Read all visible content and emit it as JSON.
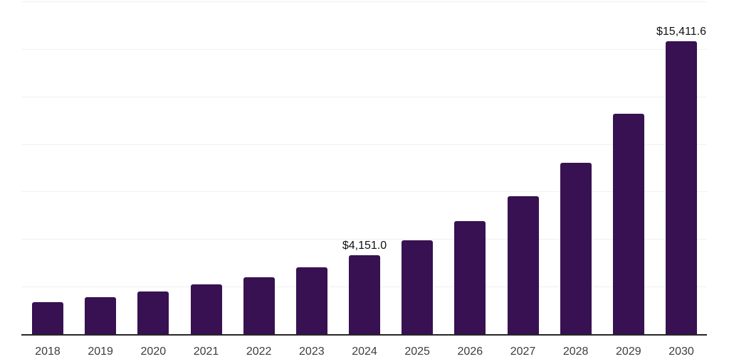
{
  "chart_data": {
    "type": "bar",
    "title": "",
    "xlabel": "",
    "ylabel": "",
    "categories": [
      "2018",
      "2019",
      "2020",
      "2021",
      "2022",
      "2023",
      "2024",
      "2025",
      "2026",
      "2027",
      "2028",
      "2029",
      "2030"
    ],
    "values": [
      1700,
      1950,
      2240,
      2620,
      2990,
      3520,
      4151.0,
      4940,
      5950,
      7240,
      9030,
      11590,
      15411.6
    ],
    "data_labels": [
      {
        "category": "2024",
        "text": "$4,151.0"
      },
      {
        "category": "2030",
        "text": "$15,411.6"
      }
    ],
    "ylim": [
      0,
      17500
    ],
    "gridline_step": 2500,
    "grid": true,
    "legend": false,
    "y_axis_ticks_visible": false,
    "colors": {
      "bar": "#371151",
      "gridline": "#f0f0f0",
      "axis_line": "#262626",
      "tick_label": "#3d3d3d",
      "data_label": "#111111",
      "background": "#ffffff"
    }
  }
}
